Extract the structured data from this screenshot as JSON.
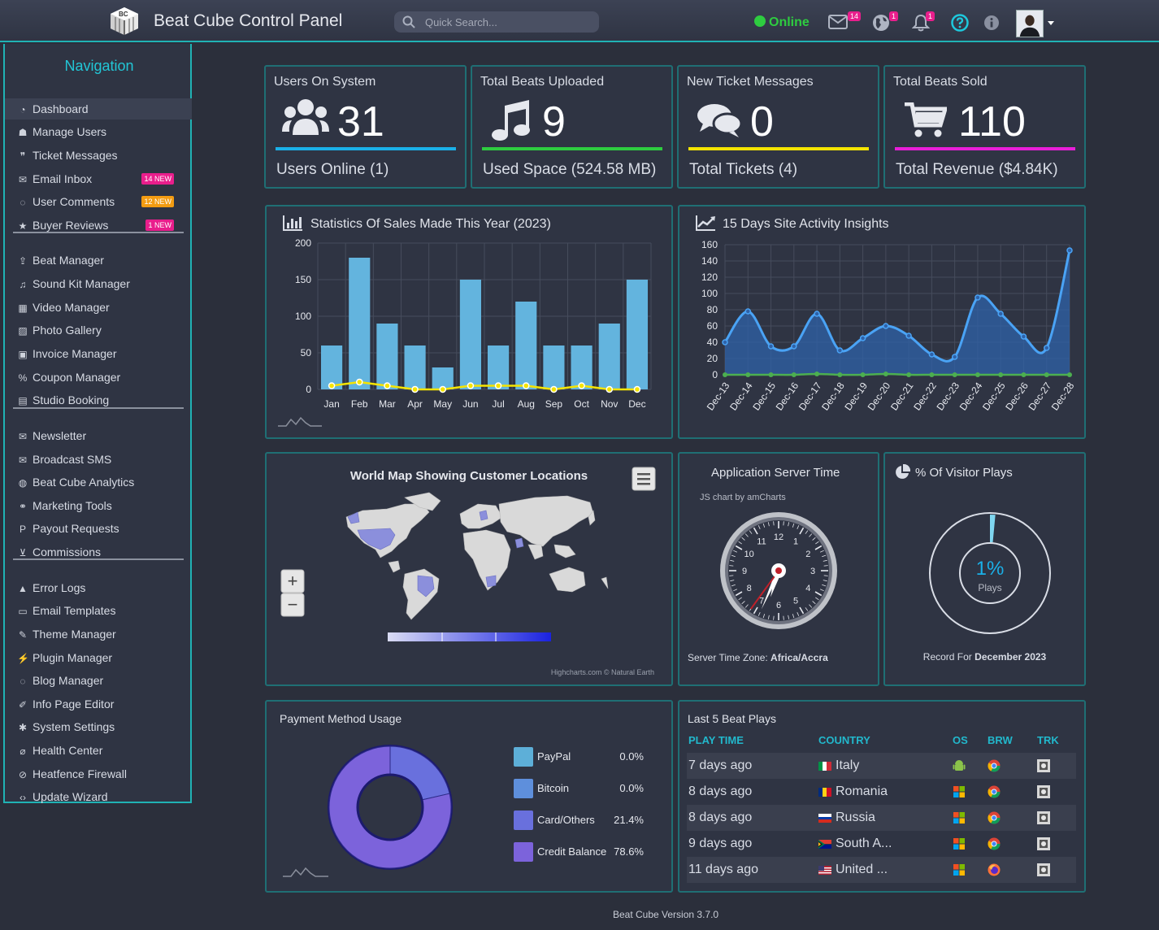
{
  "header": {
    "title": "Beat Cube Control Panel",
    "logo_text": "BC",
    "search_placeholder": "Quick Search...",
    "status": "Online",
    "mail_badge": "14",
    "globe_badge": "1",
    "bell_badge": "1",
    "icons": [
      "envelope-icon",
      "globe-icon",
      "bell-icon",
      "question-icon",
      "info-icon"
    ]
  },
  "sidebar": {
    "title": "Navigation",
    "groups": [
      [
        {
          "label": "Dashboard",
          "icon": "dashboard-icon",
          "active": true
        },
        {
          "label": "Manage Users",
          "icon": "users-icon"
        },
        {
          "label": "Ticket Messages",
          "icon": "comments-icon"
        },
        {
          "label": "Email Inbox",
          "icon": "envelope-icon",
          "badge": "14 NEW",
          "badge_color": "#e91e8c"
        },
        {
          "label": "User Comments",
          "icon": "comment-icon",
          "badge": "12 NEW",
          "badge_color": "#f39c12"
        },
        {
          "label": "Buyer Reviews",
          "icon": "star-icon",
          "badge": "1 NEW",
          "badge_color": "#e91e8c"
        }
      ],
      [
        {
          "label": "Beat Manager",
          "icon": "upload-icon"
        },
        {
          "label": "Sound Kit Manager",
          "icon": "music-icon"
        },
        {
          "label": "Video Manager",
          "icon": "film-icon"
        },
        {
          "label": "Photo Gallery",
          "icon": "image-icon"
        },
        {
          "label": "Invoice Manager",
          "icon": "invoice-icon"
        },
        {
          "label": "Coupon Manager",
          "icon": "percent-icon"
        },
        {
          "label": "Studio Booking",
          "icon": "book-icon"
        }
      ],
      [
        {
          "label": "Newsletter",
          "icon": "envelope-icon"
        },
        {
          "label": "Broadcast SMS",
          "icon": "envelope-open-icon"
        },
        {
          "label": "Beat Cube Analytics",
          "icon": "globe-icon"
        },
        {
          "label": "Marketing Tools",
          "icon": "link-icon"
        },
        {
          "label": "Payout Requests",
          "icon": "paypal-icon"
        },
        {
          "label": "Commissions",
          "icon": "cart-icon"
        }
      ],
      [
        {
          "label": "Error Logs",
          "icon": "warning-icon"
        },
        {
          "label": "Email Templates",
          "icon": "template-icon"
        },
        {
          "label": "Theme Manager",
          "icon": "brush-icon"
        },
        {
          "label": "Plugin Manager",
          "icon": "plug-icon"
        },
        {
          "label": "Blog Manager",
          "icon": "comment-icon"
        },
        {
          "label": "Info Page Editor",
          "icon": "edit-icon"
        },
        {
          "label": "System Settings",
          "icon": "gear-icon"
        },
        {
          "label": "Health Center",
          "icon": "thermometer-icon"
        },
        {
          "label": "Heatfence Firewall",
          "icon": "ban-icon"
        },
        {
          "label": "Update Wizard",
          "icon": "code-icon"
        }
      ]
    ]
  },
  "stats": [
    {
      "title": "Users On System",
      "value": "31",
      "sub": "Users Online (1)",
      "color": "#1ab0e8",
      "icon": "users-icon"
    },
    {
      "title": "Total Beats Uploaded",
      "value": "9",
      "sub": "Used Space (524.58 MB)",
      "color": "#2ecc40",
      "icon": "music-icon"
    },
    {
      "title": "New Ticket Messages",
      "value": "0",
      "sub": "Total Tickets (4)",
      "color": "#f5e400",
      "icon": "comments-icon"
    },
    {
      "title": "Total Beats Sold",
      "value": "110",
      "sub": "Total Revenue ($4.84K)",
      "color": "#e81ed8",
      "icon": "cart-icon"
    }
  ],
  "sales_panel": {
    "title": "Statistics Of Sales Made This Year (2023)"
  },
  "activity_panel": {
    "title": "15 Days Site Activity Insights"
  },
  "map_panel": {
    "title": "World Map Showing Customer Locations",
    "credit": "Highcharts.com © Natural Earth",
    "zoom_in": "+",
    "zoom_out": "−"
  },
  "clock_panel": {
    "title": "Application Server Time",
    "credit": "JS chart by amCharts",
    "tz_label": "Server Time Zone:",
    "tz_value": "Africa/Accra",
    "hour_labels": [
      "12",
      "1",
      "2",
      "3",
      "4",
      "5",
      "6",
      "7",
      "8",
      "9",
      "10",
      "11"
    ],
    "hour": 6,
    "minute": 34,
    "second": 36
  },
  "plays_panel": {
    "title": "% Of Visitor Plays",
    "value": "1%",
    "unit": "Plays",
    "record_label": "Record For",
    "record_value": "December 2023",
    "fraction": 0.01
  },
  "payment_panel": {
    "title": "Payment Method Usage",
    "legend": [
      {
        "label": "PayPal",
        "value": "0.0%",
        "color": "#5dafd8"
      },
      {
        "label": "Bitcoin",
        "value": "0.0%",
        "color": "#5e8fdc"
      },
      {
        "label": "Card/Others",
        "value": "21.4%",
        "color": "#6970dd"
      },
      {
        "label": "Credit Balance",
        "value": "78.6%",
        "color": "#7c63db"
      }
    ]
  },
  "plays_table": {
    "title": "Last 5 Beat Plays",
    "headers": [
      "PLAY TIME",
      "COUNTRY",
      "OS",
      "BRW",
      "TRK"
    ],
    "rows": [
      {
        "time": "7 days ago",
        "country": "Italy",
        "flag": "flag-italy-icon",
        "os": "android-icon",
        "brw": "chrome-icon"
      },
      {
        "time": "8 days ago",
        "country": "Romania",
        "flag": "flag-romania-icon",
        "os": "windows-icon",
        "brw": "chrome-icon"
      },
      {
        "time": "8 days ago",
        "country": "Russia",
        "flag": "flag-russia-icon",
        "os": "windows-icon",
        "brw": "chrome-icon"
      },
      {
        "time": "9 days ago",
        "country": "South A...",
        "flag": "flag-south-africa-icon",
        "os": "windows-icon",
        "brw": "chrome-icon"
      },
      {
        "time": "11 days ago",
        "country": "United ...",
        "flag": "flag-usa-icon",
        "os": "windows-icon",
        "brw": "firefox-icon"
      }
    ]
  },
  "footer": "Beat Cube Version 3.7.0",
  "chart_data": [
    {
      "type": "bar",
      "title": "Statistics Of Sales Made This Year (2023)",
      "categories": [
        "Jan",
        "Feb",
        "Mar",
        "Apr",
        "May",
        "Jun",
        "Jul",
        "Aug",
        "Sep",
        "Oct",
        "Nov",
        "Dec"
      ],
      "series": [
        {
          "values": [
            60,
            180,
            90,
            60,
            30,
            150,
            60,
            120,
            60,
            60,
            90,
            150
          ],
          "color": "#63b4de"
        },
        {
          "values": [
            5,
            10,
            5,
            0,
            0,
            5,
            5,
            5,
            0,
            5,
            0,
            0
          ],
          "color": "#f5e400"
        }
      ],
      "ylim": [
        0,
        200
      ],
      "yticks": [
        0,
        50,
        100,
        150,
        200
      ],
      "grid": true
    },
    {
      "type": "area",
      "title": "15 Days Site Activity Insights",
      "x": [
        "Dec-13",
        "Dec-14",
        "Dec-15",
        "Dec-16",
        "Dec-17",
        "Dec-18",
        "Dec-19",
        "Dec-20",
        "Dec-21",
        "Dec-22",
        "Dec-23",
        "Dec-24",
        "Dec-25",
        "Dec-26",
        "Dec-27",
        "Dec-28"
      ],
      "series": [
        {
          "values": [
            40,
            78,
            35,
            35,
            75,
            30,
            45,
            60,
            48,
            25,
            22,
            95,
            75,
            47,
            33,
            153
          ],
          "color": "#4aa3f5"
        },
        {
          "values": [
            0,
            0,
            0,
            0,
            1,
            0,
            0,
            1,
            0,
            0,
            0,
            0,
            0,
            0,
            0,
            0
          ],
          "color": "#4caf50"
        }
      ],
      "ylim": [
        0,
        160
      ],
      "yticks": [
        0,
        20,
        40,
        60,
        80,
        100,
        120,
        140,
        160
      ],
      "grid": true
    },
    {
      "type": "pie",
      "title": "Payment Method Usage",
      "categories": [
        "PayPal",
        "Bitcoin",
        "Card/Others",
        "Credit Balance"
      ],
      "values": [
        0.0,
        0.0,
        21.4,
        78.6
      ]
    }
  ]
}
